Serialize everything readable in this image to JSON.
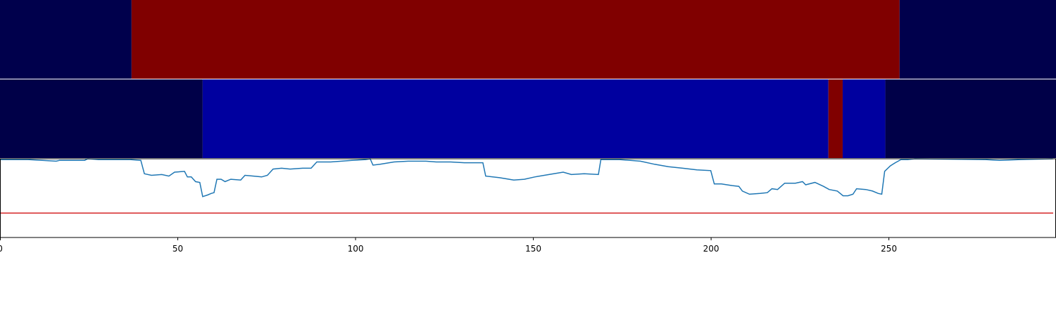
{
  "chart_data": {
    "type": "heatmap-line",
    "xlim": [
      0,
      297
    ],
    "xticks": [
      0,
      50,
      100,
      150,
      200,
      250
    ],
    "heat_rows": [
      {
        "segments": [
          {
            "start": 0,
            "end": 37,
            "color": "#00004c"
          },
          {
            "start": 37,
            "end": 253,
            "color": "#800000"
          },
          {
            "start": 253,
            "end": 297,
            "color": "#00004c"
          }
        ]
      },
      {
        "segments": [
          {
            "start": 0,
            "end": 57,
            "color": "#000048"
          },
          {
            "start": 57,
            "end": 233,
            "color": "#00009f"
          },
          {
            "start": 233,
            "end": 237,
            "color": "#800000"
          },
          {
            "start": 237,
            "end": 249,
            "color": "#00009f"
          },
          {
            "start": 249,
            "end": 297,
            "color": "#000048"
          }
        ]
      }
    ],
    "ylim": [
      0,
      1
    ],
    "threshold": {
      "value": 0.31,
      "color": "#d62728"
    },
    "line_color": "#1f77b4",
    "x": [
      0,
      7.9,
      11.9,
      15.8,
      16.8,
      23.8,
      24.7,
      27.7,
      31.7,
      36.6,
      39.6,
      40.6,
      42.6,
      45.5,
      47.5,
      49.1,
      51.9,
      52.7,
      53.8,
      55,
      56.2,
      57,
      58.4,
      59.4,
      60.2,
      61,
      62.2,
      63.3,
      64.9,
      67.7,
      68.9,
      71.3,
      73.6,
      75.2,
      76.8,
      79.2,
      81.6,
      85.1,
      87.5,
      89.1,
      93,
      99,
      102.9,
      104.1,
      104.9,
      106.9,
      110.8,
      114.8,
      119.8,
      122.7,
      126.7,
      130.6,
      135.8,
      136.6,
      140.5,
      144.5,
      147.5,
      150.4,
      154.4,
      158.4,
      160.7,
      164.3,
      168.3,
      169,
      174.2,
      180.1,
      184.1,
      188,
      192,
      196,
      199.9,
      200.9,
      202.9,
      205.9,
      207.8,
      208.8,
      210.8,
      213.8,
      215.8,
      217.1,
      218.7,
      220.7,
      223.7,
      225.7,
      226.6,
      229.2,
      231.6,
      233.2,
      235.5,
      237.1,
      238.5,
      239.9,
      240.9,
      243.5,
      245.4,
      247,
      248,
      248.8,
      250.4,
      251.8,
      253.4,
      255.3,
      257.3,
      277.1,
      281.1,
      287,
      296.1
    ],
    "values": [
      0.99,
      0.99,
      0.98,
      0.97,
      0.98,
      0.98,
      1.0,
      0.99,
      0.99,
      0.99,
      0.98,
      0.81,
      0.79,
      0.8,
      0.78,
      0.83,
      0.84,
      0.77,
      0.77,
      0.71,
      0.7,
      0.52,
      0.54,
      0.56,
      0.57,
      0.74,
      0.74,
      0.71,
      0.74,
      0.73,
      0.79,
      0.78,
      0.77,
      0.79,
      0.87,
      0.88,
      0.87,
      0.88,
      0.88,
      0.96,
      0.96,
      0.98,
      0.99,
      1.0,
      0.92,
      0.93,
      0.96,
      0.97,
      0.97,
      0.96,
      0.96,
      0.95,
      0.95,
      0.78,
      0.76,
      0.73,
      0.74,
      0.77,
      0.8,
      0.83,
      0.8,
      0.81,
      0.8,
      0.99,
      0.99,
      0.97,
      0.93,
      0.9,
      0.88,
      0.86,
      0.85,
      0.68,
      0.68,
      0.66,
      0.65,
      0.59,
      0.55,
      0.56,
      0.57,
      0.62,
      0.61,
      0.69,
      0.69,
      0.71,
      0.67,
      0.7,
      0.65,
      0.61,
      0.59,
      0.53,
      0.53,
      0.55,
      0.62,
      0.61,
      0.59,
      0.56,
      0.55,
      0.84,
      0.91,
      0.95,
      0.99,
      0.99,
      1.0,
      0.99,
      0.98,
      0.99,
      1.0
    ]
  }
}
